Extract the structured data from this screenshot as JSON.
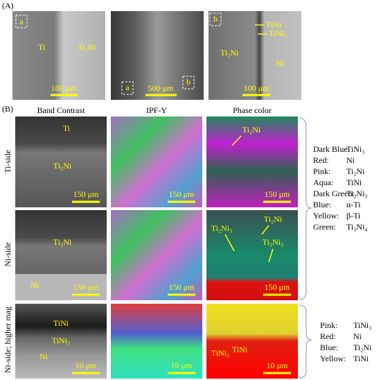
{
  "panel_a": {
    "label": "(A)",
    "images": [
      {
        "labels": [
          "a",
          "Ti",
          "Ti₂Ni"
        ],
        "scale_bar": "100 μm"
      },
      {
        "labels": [
          "a",
          "b"
        ],
        "scale_bar": "500 μm"
      },
      {
        "labels": [
          "b",
          "TiNi",
          "TiNi₃",
          "Ti₂Ni",
          "Ni"
        ],
        "scale_bar": "100 μm"
      }
    ]
  },
  "panel_b": {
    "label": "(B)",
    "columns": [
      "Band Contrast",
      "IPF-Y",
      "Phase color"
    ],
    "rows": [
      {
        "label": "Ti-side",
        "cells": [
          {
            "labels": [
              "Ti",
              "Ti₂Ni"
            ],
            "scale_bar": "150 μm"
          },
          {
            "scale_bar": "150 μm"
          },
          {
            "labels": [
              "Ti₂Ni"
            ],
            "scale_bar": "150 μm"
          }
        ]
      },
      {
        "label": "Ni-side",
        "cells": [
          {
            "labels": [
              "Ti₂Ni",
              "Ni"
            ],
            "scale_bar": "150 μm"
          },
          {
            "scale_bar": "150 μm"
          },
          {
            "labels": [
              "Ti₂Ni₃",
              "Ti₂Ni",
              "Ti₂Ni₃"
            ],
            "scale_bar": "150 μm"
          }
        ]
      },
      {
        "label": "Ni-side; higher mag",
        "cells": [
          {
            "labels": [
              "TiNi",
              "TiNi₃",
              "Ni"
            ],
            "scale_bar": "10 μm"
          },
          {
            "scale_bar": "10 μm"
          },
          {
            "labels": [
              "TiNi₃",
              "TiNi"
            ],
            "scale_bar": "10 μm"
          }
        ]
      }
    ],
    "legends": [
      {
        "entries": [
          [
            "Dark Blue:",
            "TiNi₃"
          ],
          [
            "Red:",
            "Ni"
          ],
          [
            "Pink:",
            "Ti₂Ni"
          ],
          [
            "Aqua:",
            "TiNi"
          ],
          [
            "Dark Green:",
            "Ti₂Ni₃"
          ],
          [
            "Blue:",
            "α-Ti"
          ],
          [
            "Yellow:",
            "β-Ti"
          ],
          [
            "Green:",
            "Ti₃Ni₄"
          ]
        ]
      },
      {
        "entries": [
          [
            "Pink:",
            "TiNi₃"
          ],
          [
            "Red:",
            "Ni"
          ],
          [
            "Blue:",
            "Ti₂Ni"
          ],
          [
            "Yellow:",
            "TiNi"
          ]
        ]
      }
    ]
  }
}
